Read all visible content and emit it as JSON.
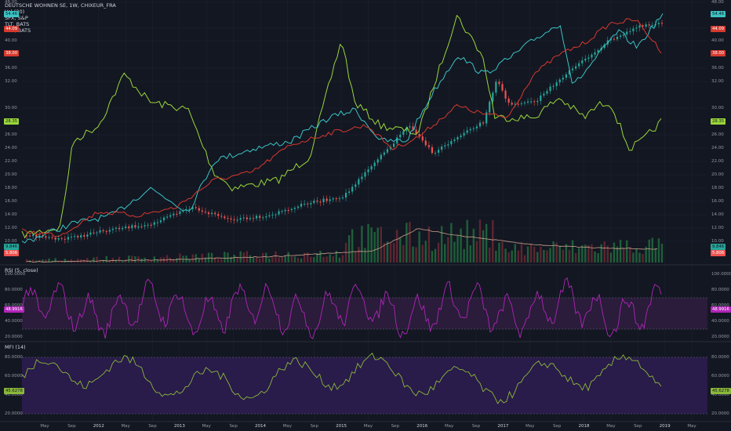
{
  "legend": {
    "main": "DEUTSCHE WOHNEN SE, 1W, CHIXEUR_FRA",
    "vol": "Vol (20)",
    "spx": "SPX, S&P",
    "tlt": "TLT, BATS",
    "xlu": "XLU, BATS"
  },
  "rsi_title": "RSI (5, close)",
  "mfi_title": "MFI (14)",
  "colors": {
    "bg": "#131722",
    "grid": "#1e2230",
    "price_up": "#26a69a",
    "price_down": "#ef5350",
    "spx": "#3ac4c4",
    "tlt": "#9ad63a",
    "xlu": "#d6392e",
    "rsi": "#b025b8",
    "mfi": "#8bb83a",
    "rsi_band": "#2a1c3a",
    "mfi_band": "#291b4a"
  },
  "price_axis": [
    "48.00",
    "44.00",
    "40.00",
    "36.00",
    "32.00",
    "30.00",
    "28.00",
    "26.00",
    "24.00",
    "22.00",
    "20.00",
    "18.00",
    "16.00",
    "14.00",
    "12.00",
    "10.00"
  ],
  "rsi_axis": [
    "100.0000",
    "80.0000",
    "60.0000",
    "40.0000",
    "20.0000"
  ],
  "mfi_axis": [
    "80.0000",
    "60.0000",
    "40.0000",
    "20.0000"
  ],
  "x_axis": [
    "May",
    "Sep",
    "2012",
    "May",
    "Sep",
    "2013",
    "May",
    "Sep",
    "2014",
    "May",
    "Sep",
    "2015",
    "May",
    "Sep",
    "2016",
    "May",
    "Sep",
    "2017",
    "May",
    "Sep",
    "2018",
    "May",
    "Sep",
    "2019",
    "May"
  ],
  "badges": {
    "spx_last": "54.46",
    "xlu_last": "44.09",
    "xlu_last2": "38.00",
    "tlt_last": "28.35",
    "price_left1": "9.846",
    "price_left2": "5.806",
    "rsi_last": "48.9916",
    "mfi_last": "45.6278"
  }
}
